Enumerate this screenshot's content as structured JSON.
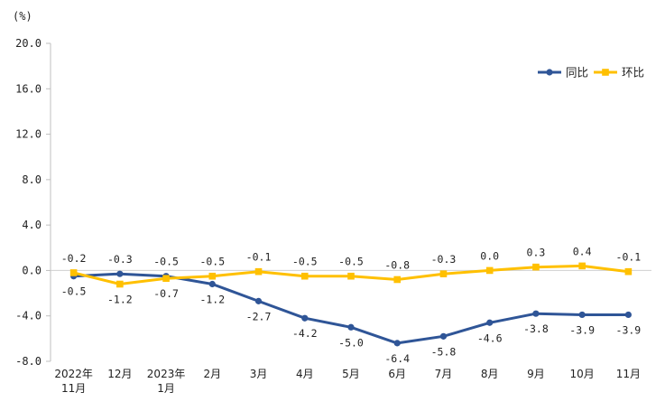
{
  "chart_data": {
    "type": "line",
    "unit_label": "(%)",
    "ylim": [
      -8.0,
      20.0
    ],
    "yticks": [
      "20.0",
      "16.0",
      "12.0",
      "8.0",
      "4.0",
      "0.0",
      "-4.0",
      "-8.0"
    ],
    "ytick_values": [
      20,
      16,
      12,
      8,
      4,
      0,
      -4,
      -8
    ],
    "categories": [
      [
        "2022年",
        "11月"
      ],
      [
        "12月"
      ],
      [
        "2023年",
        "1月"
      ],
      [
        "2月"
      ],
      [
        "3月"
      ],
      [
        "4月"
      ],
      [
        "5月"
      ],
      [
        "6月"
      ],
      [
        "7月"
      ],
      [
        "8月"
      ],
      [
        "9月"
      ],
      [
        "10月"
      ],
      [
        "11月"
      ]
    ],
    "legend_position": "top-right",
    "grid": false,
    "series": [
      {
        "name": "同比",
        "color": "#2F5597",
        "marker": "circle",
        "values": [
          -0.5,
          -0.3,
          -0.5,
          -1.2,
          -2.7,
          -4.2,
          -5.0,
          -6.4,
          -5.8,
          -4.6,
          -3.8,
          -3.9,
          -3.9
        ],
        "labels": [
          "-0.5",
          "-0.3",
          "-0.5",
          "-1.2",
          "-2.7",
          "-4.2",
          "-5.0",
          "-6.4",
          "-5.8",
          "-4.6",
          "-3.8",
          "-3.9",
          "-3.9"
        ]
      },
      {
        "name": "环比",
        "color": "#FFC000",
        "marker": "square",
        "values": [
          -0.2,
          -1.2,
          -0.7,
          -0.5,
          -0.1,
          -0.5,
          -0.5,
          -0.8,
          -0.3,
          0.0,
          0.3,
          0.4,
          -0.1
        ],
        "labels": [
          "-0.2",
          "-1.2",
          "-0.7",
          "-0.5",
          "-0.1",
          "-0.5",
          "-0.5",
          "-0.8",
          "-0.3",
          "0.0",
          "0.3",
          "0.4",
          "-0.1"
        ]
      }
    ]
  }
}
